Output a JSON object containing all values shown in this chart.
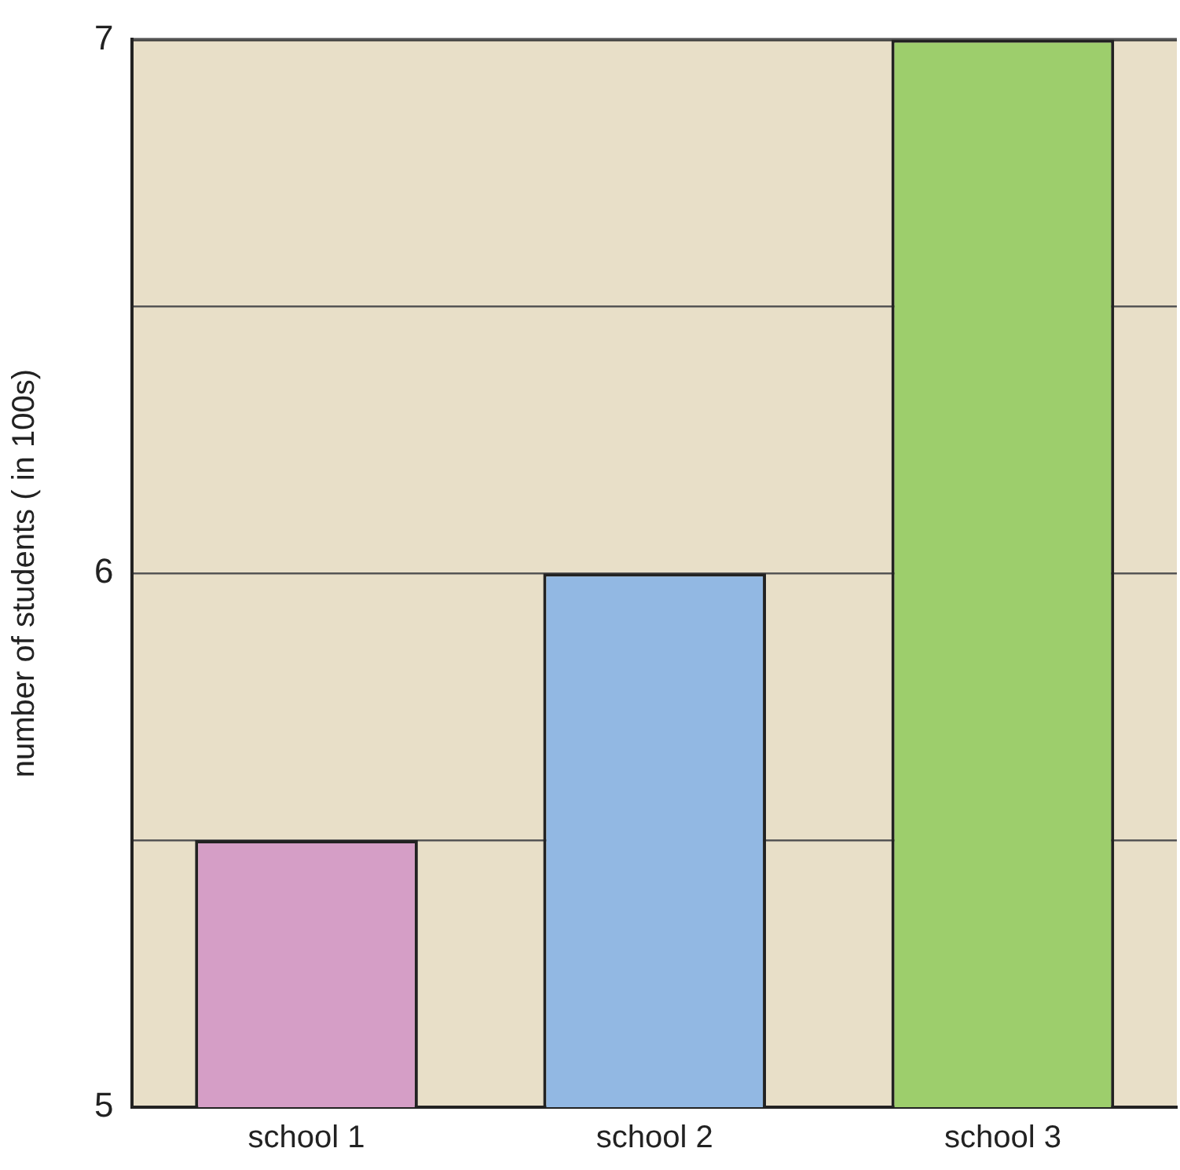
{
  "chart_data": {
    "type": "bar",
    "ylabel": "number of students ( in 100s)",
    "categories": [
      "school 1",
      "school 2",
      "school 3"
    ],
    "values": [
      5.5,
      6,
      7
    ],
    "colors": [
      "#d59ec6",
      "#92b8e3",
      "#9dce6c"
    ],
    "ylim": [
      5,
      7
    ],
    "yticks": [
      5,
      {
        "value": 5.5,
        "label": null
      },
      6,
      {
        "value": 6.5,
        "label": null
      },
      7
    ],
    "grid": "y",
    "legend": false
  }
}
